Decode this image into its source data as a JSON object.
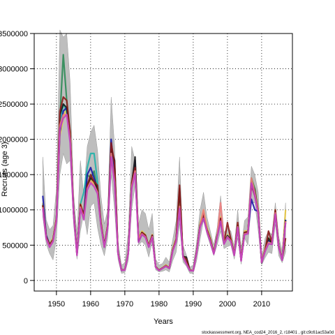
{
  "chart_data": {
    "type": "line",
    "title": "",
    "xlabel": "Years",
    "ylabel": "Recruits (age 3)",
    "xlim": [
      1943.5,
      2019
    ],
    "ylim": [
      -150000,
      3500000
    ],
    "x_ticks": [
      1950,
      1960,
      1970,
      1980,
      1990,
      2000,
      2010
    ],
    "x_tick_labels": [
      "1950",
      "1960",
      "1970",
      "1980",
      "1990",
      "2000",
      "2010"
    ],
    "y_ticks": [
      0,
      500000,
      1000000,
      1500000,
      2000000,
      2500000,
      3000000,
      3500000
    ],
    "y_tick_labels": [
      "0",
      "500000",
      "1000000",
      "1500000",
      "2000000",
      "2500000",
      "3000000",
      "3500000"
    ],
    "grid": true,
    "grid_style": "dotted",
    "years": [
      1946,
      1947,
      1948,
      1949,
      1950,
      1951,
      1952,
      1953,
      1954,
      1955,
      1956,
      1957,
      1958,
      1959,
      1960,
      1961,
      1962,
      1963,
      1964,
      1965,
      1966,
      1967,
      1968,
      1969,
      1970,
      1971,
      1972,
      1973,
      1974,
      1975,
      1976,
      1977,
      1978,
      1979,
      1980,
      1981,
      1982,
      1983,
      1984,
      1985,
      1986,
      1987,
      1988,
      1989,
      1990,
      1991,
      1992,
      1993,
      1994,
      1995,
      1996,
      1997,
      1998,
      1999,
      2000,
      2001,
      2002,
      2003,
      2004,
      2005,
      2006,
      2007,
      2008,
      2009,
      2010,
      2011,
      2012,
      2013,
      2014,
      2015,
      2016,
      2017
    ],
    "confidence_band": {
      "color": "#bebebe",
      "lower": [
        900000,
        520000,
        380000,
        290000,
        600000,
        1500000,
        1800000,
        1650000,
        1700000,
        800000,
        300000,
        700000,
        950000,
        650000,
        1050000,
        1100000,
        750000,
        500000,
        350000,
        600000,
        1500000,
        1000000,
        300000,
        100000,
        110000,
        280000,
        1000000,
        1350000,
        500000,
        550000,
        500000,
        330000,
        550000,
        150000,
        120000,
        130000,
        150000,
        120000,
        280000,
        400000,
        800000,
        260000,
        200000,
        100000,
        100000,
        280000,
        580000,
        850000,
        650000,
        500000,
        350000,
        500000,
        700000,
        450000,
        480000,
        500000,
        300000,
        600000,
        230000,
        600000,
        500000,
        1100000,
        1100000,
        700000,
        220000,
        320000,
        400000,
        380000,
        800000,
        350000,
        250000,
        400000
      ],
      "upper": [
        1750000,
        860000,
        720000,
        780000,
        1300000,
        3550000,
        3450000,
        3500000,
        2800000,
        1250000,
        650000,
        1700000,
        1200000,
        1900000,
        2100000,
        2200000,
        1850000,
        1200000,
        800000,
        1000000,
        2600000,
        1900000,
        550000,
        220000,
        250000,
        680000,
        1900000,
        1700000,
        800000,
        1000000,
        950000,
        720000,
        950000,
        300000,
        220000,
        240000,
        330000,
        260000,
        580000,
        850000,
        1750000,
        500000,
        360000,
        190000,
        220000,
        550000,
        1000000,
        1250000,
        900000,
        700000,
        500000,
        750000,
        1200000,
        680000,
        750000,
        700000,
        480000,
        1000000,
        450000,
        850000,
        900000,
        1620000,
        1500000,
        1250000,
        330000,
        600000,
        700000,
        650000,
        1100000,
        620000,
        420000,
        1100000
      ]
    },
    "series": [
      {
        "color": "#e8c840",
        "values": [
          1100000,
          620000,
          520000,
          600000,
          900000,
          2050000,
          2300000,
          2450000,
          2100000,
          1000000,
          380000,
          1100000,
          920000,
          1300000,
          1450000,
          1350000,
          1350000,
          850000,
          500000,
          800000,
          1900000,
          1450000,
          400000,
          150000,
          150000,
          400000,
          1400000,
          1700000,
          600000,
          700000,
          650000,
          500000,
          650000,
          200000,
          150000,
          180000,
          220000,
          180000,
          450000,
          600000,
          1100000,
          350000,
          250000,
          150000,
          140000,
          420000,
          800000,
          1000000,
          750000,
          600000,
          400000,
          650000,
          900000,
          550000,
          650000,
          600000,
          380000,
          800000,
          300000,
          700000,
          700000,
          1450000,
          1300000,
          1000000,
          270000,
          450000,
          600000,
          550000,
          1000000,
          500000,
          300000,
          1000000
        ]
      },
      {
        "color": "#2e8b57",
        "values": [
          1050000,
          600000,
          480000,
          560000,
          860000,
          2300000,
          3200000,
          2550000,
          2050000,
          950000,
          360000,
          1050000,
          900000,
          1500000,
          1450000,
          1550000,
          1250000,
          780000,
          470000,
          760000,
          1800000,
          1400000,
          380000,
          140000,
          150000,
          380000,
          1350000,
          1550000,
          550000,
          650000,
          620000,
          480000,
          620000,
          190000,
          140000,
          170000,
          200000,
          170000,
          420000,
          560000,
          1000000,
          330000,
          240000,
          140000,
          140000,
          400000,
          760000,
          900000,
          700000,
          560000,
          380000,
          620000,
          850000,
          520000,
          620000,
          560000,
          360000,
          760000,
          280000,
          660000,
          680000,
          1450000,
          1300000,
          950000,
          260000,
          420000,
          520000,
          520000,
          960000,
          480000,
          290000,
          820000
        ]
      },
      {
        "color": "#20b2aa",
        "values": [
          1080000,
          610000,
          500000,
          580000,
          880000,
          2200000,
          2500000,
          2400000,
          2000000,
          980000,
          370000,
          1080000,
          1250000,
          1600000,
          1800000,
          1800000,
          1400000,
          820000,
          490000,
          780000,
          1950000,
          1420000,
          390000,
          150000,
          150000,
          390000,
          1380000,
          1600000,
          580000,
          680000,
          640000,
          490000,
          640000,
          195000,
          145000,
          175000,
          210000,
          175000,
          430000,
          580000,
          1050000,
          340000,
          245000,
          145000,
          140000,
          410000,
          780000,
          950000,
          720000,
          580000,
          390000,
          640000,
          880000,
          535000,
          635000,
          580000,
          370000,
          780000,
          290000,
          680000,
          690000,
          1400000,
          1250000,
          980000,
          265000,
          430000,
          560000,
          540000,
          980000,
          490000,
          295000,
          860000
        ]
      },
      {
        "color": "#1a1aa6",
        "values": [
          1200000,
          640000,
          510000,
          580000,
          880000,
          2100000,
          2400000,
          2450000,
          2050000,
          1000000,
          380000,
          1050000,
          950000,
          1500000,
          1600000,
          1450000,
          1300000,
          820000,
          490000,
          780000,
          2000000,
          1450000,
          390000,
          150000,
          150000,
          390000,
          1380000,
          1700000,
          580000,
          680000,
          640000,
          490000,
          640000,
          195000,
          145000,
          175000,
          210000,
          175000,
          430000,
          580000,
          1050000,
          340000,
          245000,
          145000,
          140000,
          410000,
          780000,
          950000,
          720000,
          580000,
          390000,
          640000,
          880000,
          535000,
          635000,
          580000,
          370000,
          780000,
          290000,
          680000,
          690000,
          1150000,
          1000000,
          980000,
          265000,
          430000,
          560000,
          540000,
          980000,
          490000,
          295000,
          860000
        ]
      },
      {
        "color": "#1a1a1a",
        "values": [
          1060000,
          610000,
          490000,
          570000,
          870000,
          2350000,
          2500000,
          2450000,
          2050000,
          970000,
          365000,
          1060000,
          900000,
          1350000,
          1450000,
          1400000,
          1300000,
          800000,
          480000,
          770000,
          1850000,
          1700000,
          390000,
          145000,
          150000,
          390000,
          1350000,
          1750000,
          560000,
          670000,
          630000,
          485000,
          630000,
          195000,
          145000,
          175000,
          205000,
          175000,
          430000,
          570000,
          1300000,
          340000,
          330000,
          145000,
          140000,
          405000,
          770000,
          930000,
          710000,
          570000,
          385000,
          630000,
          870000,
          530000,
          630000,
          570000,
          365000,
          770000,
          285000,
          670000,
          685000,
          1400000,
          1280000,
          970000,
          250000,
          420000,
          600000,
          530000,
          970000,
          485000,
          292000,
          850000
        ]
      },
      {
        "color": "#8b1a1a",
        "values": [
          1070000,
          620000,
          500000,
          580000,
          880000,
          2400000,
          2600000,
          2550000,
          2100000,
          990000,
          370000,
          1080000,
          920000,
          1350000,
          1500000,
          1400000,
          1350000,
          820000,
          490000,
          780000,
          1950000,
          1650000,
          390000,
          150000,
          150000,
          390000,
          1380000,
          1600000,
          570000,
          680000,
          640000,
          490000,
          640000,
          195000,
          145000,
          175000,
          210000,
          175000,
          430000,
          580000,
          1350000,
          340000,
          300000,
          145000,
          140000,
          410000,
          780000,
          950000,
          720000,
          580000,
          390000,
          640000,
          880000,
          535000,
          820000,
          580000,
          370000,
          820000,
          290000,
          680000,
          690000,
          1350000,
          1200000,
          980000,
          265000,
          430000,
          700000,
          540000,
          1000000,
          490000,
          295000,
          600000
        ]
      },
      {
        "color": "#f08080",
        "values": [
          1040000,
          600000,
          480000,
          560000,
          860000,
          2200000,
          2350000,
          2350000,
          2000000,
          960000,
          360000,
          1040000,
          880000,
          1300000,
          1400000,
          1350000,
          1250000,
          790000,
          475000,
          760000,
          1800000,
          1400000,
          380000,
          145000,
          148000,
          385000,
          1330000,
          1550000,
          600000,
          660000,
          620000,
          480000,
          620000,
          190000,
          142000,
          172000,
          205000,
          172000,
          420000,
          560000,
          1050000,
          335000,
          240000,
          142000,
          138000,
          400000,
          760000,
          1000000,
          700000,
          560000,
          380000,
          620000,
          1100000,
          520000,
          620000,
          560000,
          360000,
          760000,
          280000,
          660000,
          670000,
          1450000,
          1250000,
          960000,
          260000,
          420000,
          540000,
          520000,
          960000,
          480000,
          290000,
          840000
        ]
      },
      {
        "color": "#c040c0",
        "values": [
          1020000,
          590000,
          470000,
          550000,
          840000,
          2150000,
          2300000,
          2350000,
          1950000,
          940000,
          355000,
          1020000,
          860000,
          1280000,
          1380000,
          1330000,
          1230000,
          780000,
          470000,
          750000,
          1750000,
          1380000,
          375000,
          142000,
          145000,
          380000,
          1300000,
          1520000,
          540000,
          650000,
          610000,
          470000,
          610000,
          188000,
          140000,
          170000,
          200000,
          170000,
          415000,
          550000,
          1020000,
          330000,
          235000,
          140000,
          136000,
          395000,
          750000,
          880000,
          690000,
          550000,
          375000,
          610000,
          840000,
          515000,
          610000,
          550000,
          355000,
          750000,
          275000,
          650000,
          660000,
          1380000,
          1200000,
          940000,
          255000,
          410000,
          520000,
          510000,
          940000,
          470000,
          285000,
          820000
        ]
      }
    ],
    "footnote": "stockassessment.org, NEA_cod24_2016_2, r18401 , git:c9c61ac53a0d"
  }
}
